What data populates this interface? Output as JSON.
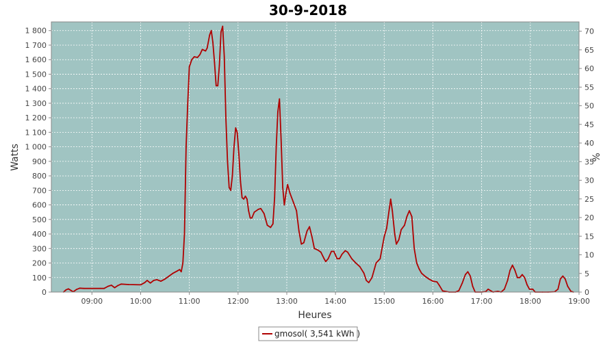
{
  "chart_data": {
    "type": "line",
    "title": "30-9-2018",
    "xlabel": "Heures",
    "ylabel": "Watts",
    "y2label": "%",
    "xlim": [
      "08:10",
      "19:00"
    ],
    "ylim": [
      0,
      1860
    ],
    "y2lim": [
      0,
      72.5
    ],
    "x_ticks": [
      "09:00",
      "10:00",
      "11:00",
      "12:00",
      "13:00",
      "14:00",
      "15:00",
      "16:00",
      "17:00",
      "18:00",
      "19:00"
    ],
    "y_ticks": [
      "0",
      "100",
      "200",
      "300",
      "400",
      "500",
      "600",
      "700",
      "800",
      "900",
      "1 000",
      "1 100",
      "1 200",
      "1 300",
      "1 400",
      "1 500",
      "1 600",
      "1 700",
      "1 800"
    ],
    "y2_ticks": [
      "0",
      "5",
      "10",
      "15",
      "20",
      "25",
      "30",
      "35",
      "40",
      "45",
      "50",
      "55",
      "60",
      "65",
      "70"
    ],
    "grid": true,
    "legend": "bottom-center",
    "colors": {
      "plot_bg": "#a0c4c2",
      "line": "#b00000",
      "grid": "#ffffff"
    },
    "series": [
      {
        "name": "gmosol( 3,541 kWh )",
        "points": [
          [
            "08:25",
            0
          ],
          [
            "08:28",
            15
          ],
          [
            "08:31",
            22
          ],
          [
            "08:34",
            12
          ],
          [
            "08:37",
            2
          ],
          [
            "08:41",
            18
          ],
          [
            "08:45",
            27
          ],
          [
            "08:50",
            25
          ],
          [
            "09:00",
            25
          ],
          [
            "09:10",
            25
          ],
          [
            "09:15",
            25
          ],
          [
            "09:20",
            40
          ],
          [
            "09:24",
            47
          ],
          [
            "09:28",
            30
          ],
          [
            "09:32",
            45
          ],
          [
            "09:36",
            55
          ],
          [
            "09:45",
            52
          ],
          [
            "10:00",
            50
          ],
          [
            "10:05",
            65
          ],
          [
            "10:08",
            80
          ],
          [
            "10:12",
            62
          ],
          [
            "10:16",
            80
          ],
          [
            "10:20",
            85
          ],
          [
            "10:25",
            75
          ],
          [
            "10:30",
            90
          ],
          [
            "10:35",
            110
          ],
          [
            "10:40",
            130
          ],
          [
            "10:45",
            145
          ],
          [
            "10:48",
            155
          ],
          [
            "10:50",
            140
          ],
          [
            "10:52",
            200
          ],
          [
            "10:54",
            400
          ],
          [
            "10:56",
            1000
          ],
          [
            "10:58",
            1300
          ],
          [
            "11:00",
            1550
          ],
          [
            "11:03",
            1600
          ],
          [
            "11:06",
            1620
          ],
          [
            "11:10",
            1615
          ],
          [
            "11:13",
            1635
          ],
          [
            "11:16",
            1670
          ],
          [
            "11:20",
            1660
          ],
          [
            "11:22",
            1680
          ],
          [
            "11:25",
            1770
          ],
          [
            "11:27",
            1800
          ],
          [
            "11:29",
            1720
          ],
          [
            "11:31",
            1580
          ],
          [
            "11:33",
            1420
          ],
          [
            "11:35",
            1420
          ],
          [
            "11:37",
            1560
          ],
          [
            "11:39",
            1790
          ],
          [
            "11:41",
            1830
          ],
          [
            "11:43",
            1620
          ],
          [
            "11:45",
            1200
          ],
          [
            "11:47",
            900
          ],
          [
            "11:49",
            720
          ],
          [
            "11:51",
            700
          ],
          [
            "11:53",
            800
          ],
          [
            "11:55",
            1000
          ],
          [
            "11:57",
            1130
          ],
          [
            "11:59",
            1100
          ],
          [
            "12:01",
            950
          ],
          [
            "12:03",
            760
          ],
          [
            "12:05",
            650
          ],
          [
            "12:07",
            640
          ],
          [
            "12:09",
            660
          ],
          [
            "12:11",
            640
          ],
          [
            "12:13",
            560
          ],
          [
            "12:15",
            510
          ],
          [
            "12:17",
            510
          ],
          [
            "12:20",
            550
          ],
          [
            "12:25",
            570
          ],
          [
            "12:28",
            575
          ],
          [
            "12:32",
            540
          ],
          [
            "12:36",
            460
          ],
          [
            "12:40",
            445
          ],
          [
            "12:43",
            470
          ],
          [
            "12:45",
            650
          ],
          [
            "12:47",
            1000
          ],
          [
            "12:49",
            1240
          ],
          [
            "12:51",
            1330
          ],
          [
            "12:53",
            1050
          ],
          [
            "12:55",
            720
          ],
          [
            "12:57",
            600
          ],
          [
            "12:59",
            680
          ],
          [
            "13:01",
            740
          ],
          [
            "13:04",
            680
          ],
          [
            "13:08",
            620
          ],
          [
            "13:12",
            560
          ],
          [
            "13:15",
            420
          ],
          [
            "13:18",
            330
          ],
          [
            "13:21",
            340
          ],
          [
            "13:25",
            420
          ],
          [
            "13:28",
            450
          ],
          [
            "13:31",
            380
          ],
          [
            "13:34",
            300
          ],
          [
            "13:38",
            290
          ],
          [
            "13:42",
            275
          ],
          [
            "13:46",
            230
          ],
          [
            "13:48",
            210
          ],
          [
            "13:51",
            230
          ],
          [
            "13:55",
            280
          ],
          [
            "13:58",
            280
          ],
          [
            "14:02",
            230
          ],
          [
            "14:05",
            230
          ],
          [
            "14:08",
            260
          ],
          [
            "14:12",
            285
          ],
          [
            "14:15",
            275
          ],
          [
            "14:20",
            230
          ],
          [
            "14:25",
            200
          ],
          [
            "14:30",
            175
          ],
          [
            "14:35",
            130
          ],
          [
            "14:38",
            80
          ],
          [
            "14:41",
            65
          ],
          [
            "14:45",
            100
          ],
          [
            "14:50",
            200
          ],
          [
            "14:55",
            230
          ],
          [
            "15:00",
            380
          ],
          [
            "15:03",
            440
          ],
          [
            "15:06",
            560
          ],
          [
            "15:08",
            640
          ],
          [
            "15:10",
            560
          ],
          [
            "15:13",
            400
          ],
          [
            "15:15",
            330
          ],
          [
            "15:18",
            360
          ],
          [
            "15:21",
            430
          ],
          [
            "15:25",
            460
          ],
          [
            "15:28",
            520
          ],
          [
            "15:31",
            560
          ],
          [
            "15:34",
            520
          ],
          [
            "15:37",
            300
          ],
          [
            "15:40",
            200
          ],
          [
            "15:43",
            160
          ],
          [
            "15:46",
            130
          ],
          [
            "15:50",
            110
          ],
          [
            "15:55",
            90
          ],
          [
            "16:00",
            75
          ],
          [
            "16:05",
            70
          ],
          [
            "16:08",
            45
          ],
          [
            "16:12",
            8
          ],
          [
            "16:20",
            0
          ],
          [
            "16:28",
            0
          ],
          [
            "16:32",
            10
          ],
          [
            "16:36",
            60
          ],
          [
            "16:40",
            120
          ],
          [
            "16:43",
            140
          ],
          [
            "16:46",
            110
          ],
          [
            "16:49",
            40
          ],
          [
            "16:52",
            0
          ],
          [
            "17:00",
            0
          ],
          [
            "17:05",
            3
          ],
          [
            "17:08",
            20
          ],
          [
            "17:11",
            10
          ],
          [
            "17:14",
            0
          ],
          [
            "17:20",
            5
          ],
          [
            "17:24",
            0
          ],
          [
            "17:28",
            20
          ],
          [
            "17:32",
            80
          ],
          [
            "17:35",
            150
          ],
          [
            "17:38",
            185
          ],
          [
            "17:41",
            150
          ],
          [
            "17:44",
            100
          ],
          [
            "17:47",
            100
          ],
          [
            "17:50",
            120
          ],
          [
            "17:53",
            100
          ],
          [
            "17:56",
            50
          ],
          [
            "17:59",
            20
          ],
          [
            "18:03",
            20
          ],
          [
            "18:06",
            0
          ],
          [
            "18:15",
            0
          ],
          [
            "18:22",
            0
          ],
          [
            "18:30",
            2
          ],
          [
            "18:34",
            20
          ],
          [
            "18:37",
            90
          ],
          [
            "18:40",
            110
          ],
          [
            "18:43",
            90
          ],
          [
            "18:46",
            40
          ],
          [
            "18:50",
            5
          ],
          [
            "18:53",
            0
          ]
        ]
      }
    ]
  }
}
